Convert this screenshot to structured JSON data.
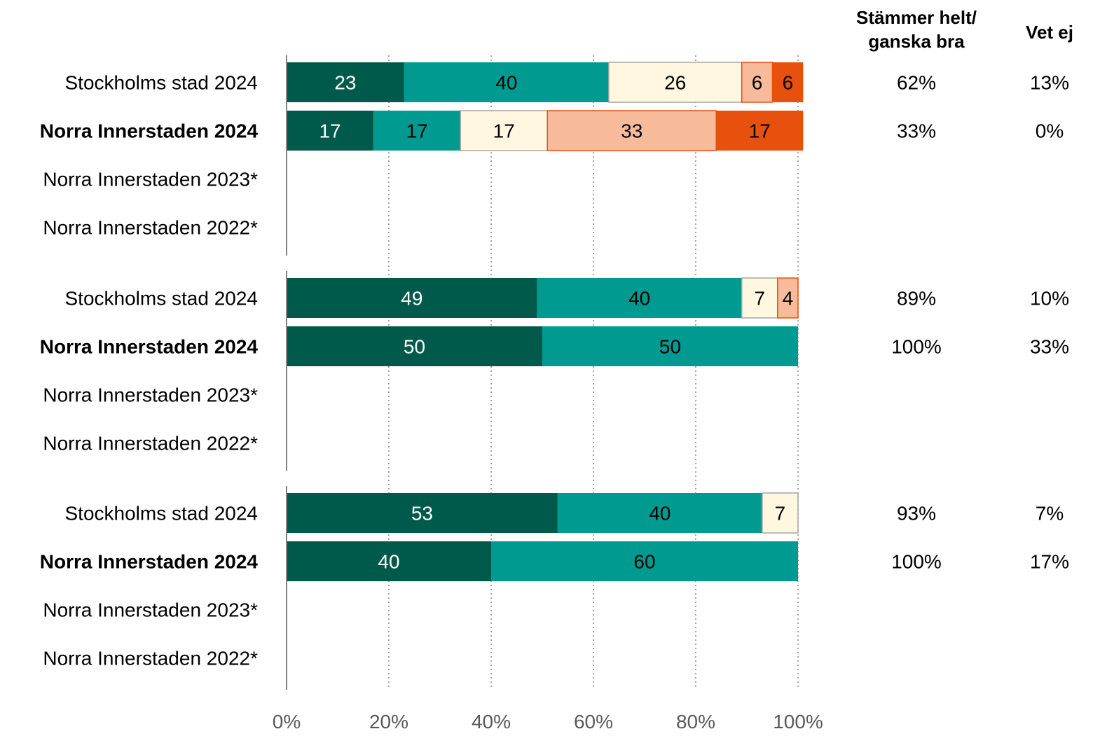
{
  "chart_data": {
    "type": "bar",
    "orientation": "horizontal",
    "stacked": true,
    "xlim": [
      0,
      100
    ],
    "x_ticks": [
      "0%",
      "20%",
      "40%",
      "60%",
      "80%",
      "100%"
    ],
    "grid": "vertical dotted",
    "columns": [
      {
        "key": "agree",
        "title_lines": [
          "Stämmer helt/",
          "ganska bra"
        ]
      },
      {
        "key": "dontknow",
        "title_lines": [
          "Vet ej"
        ]
      }
    ],
    "segment_colors": [
      "#005a4c",
      "#009a91",
      "#fff7e0",
      "#f7bb9c",
      "#e8500e"
    ],
    "segment_text_colors": [
      "#ffffff",
      "#000000",
      "#000000",
      "#000000",
      "#000000"
    ],
    "groups": [
      {
        "rows": [
          {
            "label": "Stockholms stad 2024",
            "bold": false,
            "values": [
              23,
              40,
              26,
              6,
              6
            ],
            "agree": "62%",
            "dontknow": "13%"
          },
          {
            "label": "Norra Innerstaden 2024",
            "bold": true,
            "values": [
              17,
              17,
              17,
              33,
              17
            ],
            "agree": "33%",
            "dontknow": "0%"
          },
          {
            "label": "Norra Innerstaden 2023*",
            "bold": false,
            "values": [],
            "agree": "",
            "dontknow": ""
          },
          {
            "label": "Norra Innerstaden 2022*",
            "bold": false,
            "values": [],
            "agree": "",
            "dontknow": ""
          }
        ]
      },
      {
        "rows": [
          {
            "label": "Stockholms stad 2024",
            "bold": false,
            "values": [
              49,
              40,
              7,
              4,
              0
            ],
            "agree": "89%",
            "dontknow": "10%"
          },
          {
            "label": "Norra Innerstaden 2024",
            "bold": true,
            "values": [
              50,
              50,
              0,
              0,
              0
            ],
            "agree": "100%",
            "dontknow": "33%"
          },
          {
            "label": "Norra Innerstaden 2023*",
            "bold": false,
            "values": [],
            "agree": "",
            "dontknow": ""
          },
          {
            "label": "Norra Innerstaden 2022*",
            "bold": false,
            "values": [],
            "agree": "",
            "dontknow": ""
          }
        ]
      },
      {
        "rows": [
          {
            "label": "Stockholms stad 2024",
            "bold": false,
            "values": [
              53,
              40,
              7,
              0,
              0
            ],
            "agree": "93%",
            "dontknow": "7%"
          },
          {
            "label": "Norra Innerstaden 2024",
            "bold": true,
            "values": [
              40,
              60,
              0,
              0,
              0
            ],
            "agree": "100%",
            "dontknow": "17%"
          },
          {
            "label": "Norra Innerstaden 2023*",
            "bold": false,
            "values": [],
            "agree": "",
            "dontknow": ""
          },
          {
            "label": "Norra Innerstaden 2022*",
            "bold": false,
            "values": [],
            "agree": "",
            "dontknow": ""
          }
        ]
      }
    ]
  }
}
